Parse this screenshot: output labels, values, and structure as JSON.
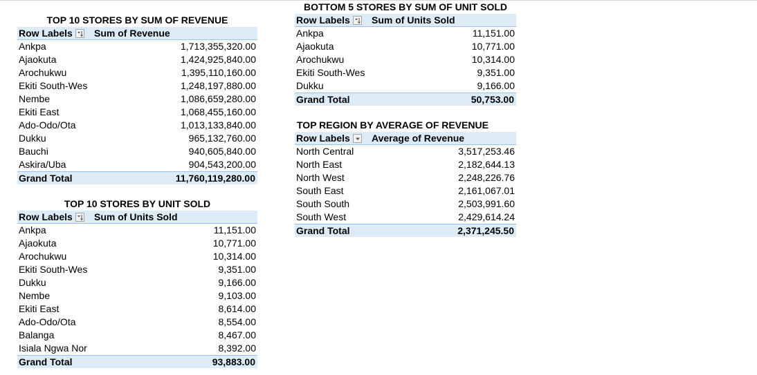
{
  "t1": {
    "title": "TOP 10 STORES BY SUM OF REVENUE",
    "row_labels": "Row Labels",
    "value_header": "Sum of Revenue",
    "rows": [
      {
        "label": "Ankpa",
        "value": "1,713,355,320.00"
      },
      {
        "label": "Ajaokuta",
        "value": "1,424,925,840.00"
      },
      {
        "label": "Arochukwu",
        "value": "1,395,110,160.00"
      },
      {
        "label": "Ekiti South-Wes",
        "value": "1,248,197,880.00"
      },
      {
        "label": "Nembe",
        "value": "1,086,659,280.00"
      },
      {
        "label": "Ekiti East",
        "value": "1,068,455,160.00"
      },
      {
        "label": "Ado-Odo/Ota",
        "value": "1,013,133,840.00"
      },
      {
        "label": "Dukku",
        "value": "965,132,760.00"
      },
      {
        "label": "Bauchi",
        "value": "940,605,840.00"
      },
      {
        "label": "Askira/Uba",
        "value": "904,543,200.00"
      }
    ],
    "total_label": "Grand Total",
    "total_value": "11,760,119,280.00"
  },
  "t2": {
    "title": "TOP 10 STORES BY UNIT SOLD",
    "row_labels": "Row Labels",
    "value_header": "Sum of Units Sold",
    "rows": [
      {
        "label": "Ankpa",
        "value": "11,151.00"
      },
      {
        "label": "Ajaokuta",
        "value": "10,771.00"
      },
      {
        "label": "Arochukwu",
        "value": "10,314.00"
      },
      {
        "label": "Ekiti South-Wes",
        "value": "9,351.00"
      },
      {
        "label": "Dukku",
        "value": "9,166.00"
      },
      {
        "label": "Nembe",
        "value": "9,103.00"
      },
      {
        "label": "Ekiti East",
        "value": "8,614.00"
      },
      {
        "label": "Ado-Odo/Ota",
        "value": "8,554.00"
      },
      {
        "label": "Balanga",
        "value": "8,467.00"
      },
      {
        "label": "Isiala Ngwa Nor",
        "value": "8,392.00"
      }
    ],
    "total_label": "Grand Total",
    "total_value": "93,883.00"
  },
  "t3": {
    "title": "BOTTOM 5 STORES BY SUM OF UNIT SOLD",
    "row_labels": "Row Labels",
    "value_header": "Sum of Units Sold",
    "rows": [
      {
        "label": "Ankpa",
        "value": "11,151.00"
      },
      {
        "label": "Ajaokuta",
        "value": "10,771.00"
      },
      {
        "label": "Arochukwu",
        "value": "10,314.00"
      },
      {
        "label": "Ekiti South-Wes",
        "value": "9,351.00"
      },
      {
        "label": "Dukku",
        "value": "9,166.00"
      }
    ],
    "total_label": "Grand Total",
    "total_value": "50,753.00"
  },
  "t4": {
    "title": "TOP REGION BY AVERAGE OF REVENUE",
    "row_labels": "Row Labels",
    "value_header": "Average of Revenue",
    "rows": [
      {
        "label": "North Central",
        "value": "3,517,253.46"
      },
      {
        "label": "North East",
        "value": "2,182,644.13"
      },
      {
        "label": "North West",
        "value": "2,248,226.76"
      },
      {
        "label": "South East",
        "value": "2,161,067.01"
      },
      {
        "label": "South South",
        "value": "2,503,991.60"
      },
      {
        "label": "South West",
        "value": "2,429,614.24"
      }
    ],
    "total_label": "Grand Total",
    "total_value": "2,371,245.50"
  },
  "icons": {
    "sort_filter": "sort-filter-icon",
    "dropdown": "dropdown-arrow-icon"
  }
}
